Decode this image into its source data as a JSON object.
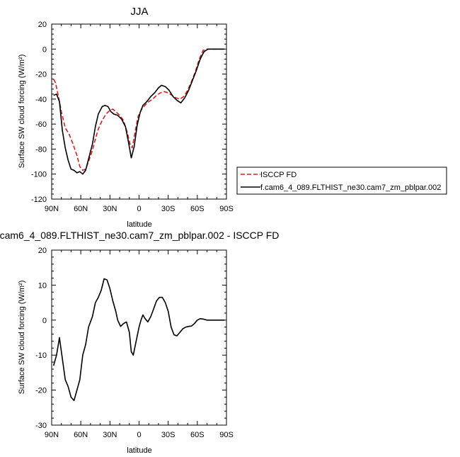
{
  "chart_data": [
    {
      "type": "line",
      "title": "JJA",
      "xlabel": "latitude",
      "ylabel": "Surface SW cloud forcing (W/m²)",
      "xlim": [
        90,
        -90
      ],
      "ylim": [
        -120,
        20
      ],
      "x_ticks": [
        90,
        60,
        30,
        0,
        -30,
        -60,
        -90
      ],
      "x_tick_labels": [
        "90N",
        "60N",
        "30N",
        "0",
        "30S",
        "60S",
        "90S"
      ],
      "y_ticks": [
        20,
        0,
        -20,
        -40,
        -60,
        -80,
        -100,
        -120
      ],
      "y_tick_labels": [
        "20",
        "0",
        "-20",
        "-40",
        "-60",
        "-80",
        "-100",
        "-120"
      ],
      "legend_position": "right",
      "series": [
        {
          "name": "ISCCP FD",
          "color": "#dd1c1c",
          "style": "dashed",
          "points": [
            [
              88,
              -24
            ],
            [
              86,
              -27
            ],
            [
              83,
              -38
            ],
            [
              80,
              -50
            ],
            [
              76,
              -63
            ],
            [
              72,
              -68
            ],
            [
              68,
              -76
            ],
            [
              64,
              -85
            ],
            [
              61,
              -94
            ],
            [
              58,
              -97
            ],
            [
              55,
              -96
            ],
            [
              52,
              -90
            ],
            [
              48,
              -81
            ],
            [
              45,
              -72
            ],
            [
              42,
              -64
            ],
            [
              38,
              -57
            ],
            [
              34,
              -52
            ],
            [
              30,
              -49
            ],
            [
              27,
              -48
            ],
            [
              24,
              -50
            ],
            [
              20,
              -53
            ],
            [
              16,
              -57
            ],
            [
              12,
              -67
            ],
            [
              9,
              -77
            ],
            [
              7,
              -79
            ],
            [
              4,
              -66
            ],
            [
              1,
              -54
            ],
            [
              -2,
              -49
            ],
            [
              -6,
              -45
            ],
            [
              -10,
              -42
            ],
            [
              -14,
              -40
            ],
            [
              -18,
              -37
            ],
            [
              -22,
              -35
            ],
            [
              -26,
              -34
            ],
            [
              -30,
              -35
            ],
            [
              -34,
              -37
            ],
            [
              -38,
              -39
            ],
            [
              -42,
              -40
            ],
            [
              -46,
              -38
            ],
            [
              -50,
              -33
            ],
            [
              -54,
              -26
            ],
            [
              -58,
              -18
            ],
            [
              -62,
              -8
            ],
            [
              -66,
              -1
            ],
            [
              -70,
              0
            ],
            [
              -75,
              0
            ],
            [
              -80,
              0
            ],
            [
              -85,
              0
            ],
            [
              -88,
              0
            ]
          ]
        },
        {
          "name": "f.cam6_4_089.FLTHIST_ne30.cam7_zm_pblpar.002",
          "color": "#000000",
          "style": "solid",
          "points": [
            [
              88,
              -37
            ],
            [
              85,
              -36
            ],
            [
              82,
              -42
            ],
            [
              79,
              -65
            ],
            [
              76,
              -79
            ],
            [
              73,
              -89
            ],
            [
              70,
              -96
            ],
            [
              67,
              -97
            ],
            [
              64,
              -99
            ],
            [
              61,
              -98
            ],
            [
              58,
              -100
            ],
            [
              55,
              -97
            ],
            [
              52,
              -88
            ],
            [
              48,
              -76
            ],
            [
              45,
              -62
            ],
            [
              42,
              -52
            ],
            [
              38,
              -46
            ],
            [
              35,
              -45
            ],
            [
              32,
              -46
            ],
            [
              29,
              -50
            ],
            [
              26,
              -52
            ],
            [
              22,
              -53
            ],
            [
              18,
              -56
            ],
            [
              14,
              -62
            ],
            [
              11,
              -74
            ],
            [
              8,
              -87
            ],
            [
              5,
              -78
            ],
            [
              2,
              -61
            ],
            [
              -1,
              -51
            ],
            [
              -4,
              -45
            ],
            [
              -8,
              -42
            ],
            [
              -12,
              -38
            ],
            [
              -16,
              -35
            ],
            [
              -20,
              -31
            ],
            [
              -23,
              -29
            ],
            [
              -27,
              -30
            ],
            [
              -31,
              -33
            ],
            [
              -35,
              -38
            ],
            [
              -39,
              -41
            ],
            [
              -43,
              -43
            ],
            [
              -47,
              -39
            ],
            [
              -51,
              -33
            ],
            [
              -55,
              -25
            ],
            [
              -59,
              -17
            ],
            [
              -63,
              -8
            ],
            [
              -67,
              -2
            ],
            [
              -71,
              0
            ],
            [
              -75,
              0
            ],
            [
              -80,
              0
            ],
            [
              -85,
              0
            ],
            [
              -88,
              0
            ]
          ]
        }
      ]
    },
    {
      "type": "line",
      "title": "cam6_4_089.FLTHIST_ne30.cam7_zm_pblpar.002 - ISCCP FD",
      "xlabel": "latitude",
      "ylabel": "Surface SW cloud forcing (W/m²)",
      "xlim": [
        90,
        -90
      ],
      "ylim": [
        -30,
        20
      ],
      "x_ticks": [
        90,
        60,
        30,
        0,
        -30,
        -60,
        -90
      ],
      "x_tick_labels": [
        "90N",
        "60N",
        "30N",
        "0",
        "30S",
        "60S",
        "90S"
      ],
      "y_ticks": [
        20,
        10,
        0,
        -10,
        -20,
        -30
      ],
      "y_tick_labels": [
        "20",
        "10",
        "0",
        "-10",
        "-20",
        "-30"
      ],
      "series": [
        {
          "color": "#000000",
          "style": "solid",
          "points": [
            [
              88,
              -13
            ],
            [
              85,
              -10
            ],
            [
              82,
              -5
            ],
            [
              79,
              -11
            ],
            [
              76,
              -17
            ],
            [
              73,
              -19
            ],
            [
              70,
              -22
            ],
            [
              67,
              -23
            ],
            [
              64,
              -20
            ],
            [
              61,
              -17
            ],
            [
              58,
              -10
            ],
            [
              55,
              -7
            ],
            [
              52,
              -2
            ],
            [
              48,
              1
            ],
            [
              45,
              5
            ],
            [
              42,
              6.5
            ],
            [
              39,
              8.5
            ],
            [
              36,
              11.8
            ],
            [
              33,
              11.5
            ],
            [
              30,
              9
            ],
            [
              27,
              5.5
            ],
            [
              24,
              2.5
            ],
            [
              22,
              0
            ],
            [
              19,
              -1.8
            ],
            [
              16,
              -1
            ],
            [
              13,
              -0.5
            ],
            [
              10,
              -3.5
            ],
            [
              8,
              -9
            ],
            [
              6,
              -10
            ],
            [
              3,
              -6
            ],
            [
              0,
              -2
            ],
            [
              -2,
              0
            ],
            [
              -4,
              1.5
            ],
            [
              -6,
              0.5
            ],
            [
              -9,
              -0.5
            ],
            [
              -12,
              1
            ],
            [
              -15,
              3.2
            ],
            [
              -18,
              5.5
            ],
            [
              -21,
              6.5
            ],
            [
              -24,
              6.5
            ],
            [
              -27,
              5
            ],
            [
              -30,
              2.5
            ],
            [
              -33,
              -2
            ],
            [
              -36,
              -4.2
            ],
            [
              -39,
              -4.5
            ],
            [
              -42,
              -3.5
            ],
            [
              -45,
              -2.5
            ],
            [
              -48,
              -2
            ],
            [
              -51,
              -1.8
            ],
            [
              -54,
              -1.7
            ],
            [
              -57,
              -1
            ],
            [
              -60,
              0
            ],
            [
              -63,
              0.4
            ],
            [
              -66,
              0.3
            ],
            [
              -70,
              0
            ],
            [
              -75,
              0
            ],
            [
              -80,
              0
            ],
            [
              -85,
              0
            ],
            [
              -88,
              0
            ]
          ]
        }
      ]
    }
  ]
}
